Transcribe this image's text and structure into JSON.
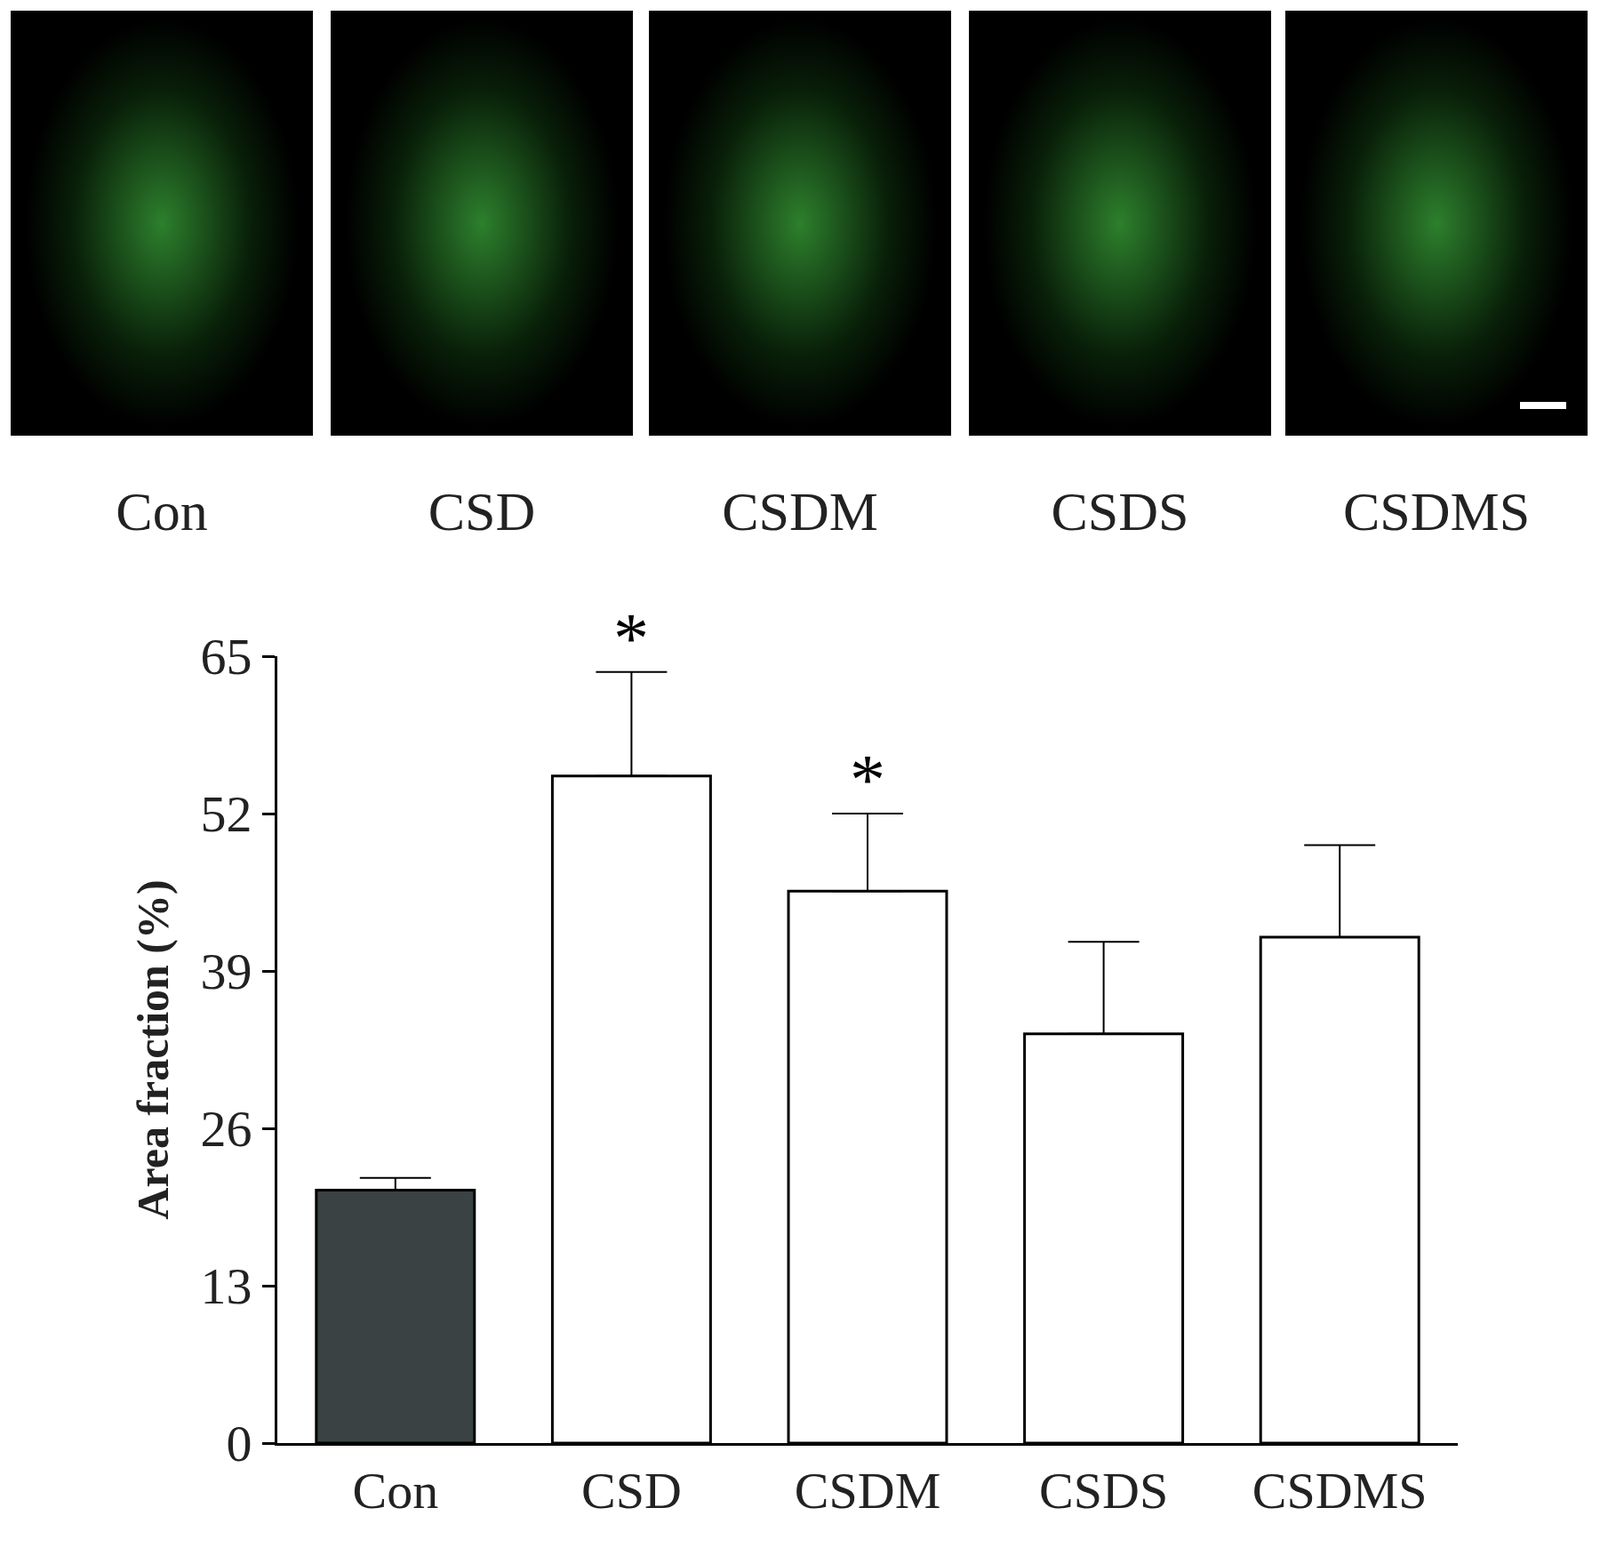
{
  "chart_data": {
    "type": "bar",
    "panel_labels": [
      "Con",
      "CSD",
      "CSDM",
      "CSDS",
      "CSDMS"
    ],
    "categories": [
      "Con",
      "CSD",
      "CSDM",
      "CSDS",
      "CSDMS"
    ],
    "values": [
      20.9,
      55.1,
      45.6,
      33.8,
      41.8
    ],
    "errors": [
      1.0,
      8.6,
      6.4,
      7.6,
      7.6
    ],
    "colors": [
      "#3a4244",
      "#ffffff",
      "#ffffff",
      "#ffffff",
      "#ffffff"
    ],
    "y_label": "Area fraction (%)",
    "ylim": [
      0,
      65
    ],
    "yticks": [
      0,
      13,
      26,
      39,
      52,
      65
    ],
    "grid": false,
    "annotations": [
      {
        "x": "CSD",
        "text": "*"
      },
      {
        "x": "CSDM",
        "text": "*"
      }
    ]
  }
}
